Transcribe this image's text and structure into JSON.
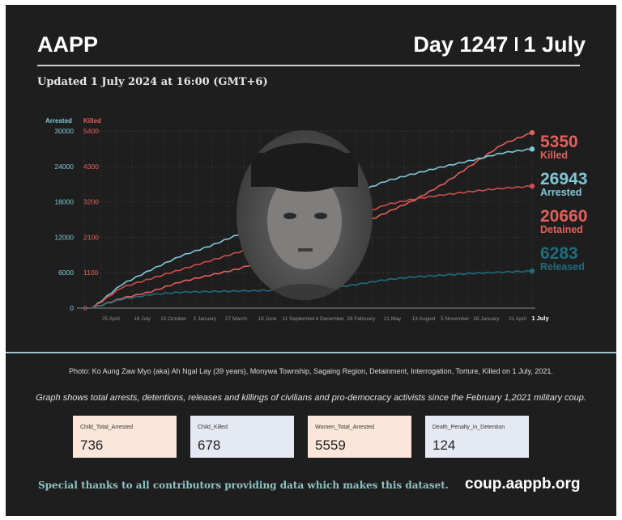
{
  "header": {
    "brand": "AAPP",
    "day": "Day 1247",
    "date": "1 July",
    "updated": "Updated 1 July 2024 at 16:00 (GMT+6)"
  },
  "chart_data": {
    "type": "line",
    "title": "",
    "left_axis": {
      "label": "Arrested",
      "ticks": [
        0,
        6000,
        12000,
        18000,
        24000,
        30000
      ],
      "range": [
        0,
        30000
      ],
      "color": "#7ec8d6"
    },
    "right_axis": {
      "label": "Killed",
      "ticks": [
        0,
        1100,
        2100,
        3200,
        4300,
        5400
      ],
      "range": [
        0,
        5400
      ],
      "color": "#e2605b"
    },
    "x_ticks": [
      "25 April",
      "16 July",
      "10 October",
      "2 January",
      "27 March",
      "19 June",
      "11 September",
      "4 December",
      "26 February",
      "21 May",
      "13 August",
      "5 November",
      "28 January",
      "21 April",
      "1 July"
    ],
    "grid": true,
    "series": [
      {
        "name": "Killed",
        "axis": "right",
        "color": "#e2605b",
        "final": 5350,
        "values": [
          0,
          300,
          500,
          800,
          1000,
          1200,
          1500,
          1750,
          2050,
          2500,
          2900,
          3300,
          3800,
          4400,
          5000,
          5350
        ]
      },
      {
        "name": "Arrested",
        "axis": "left",
        "color": "#7ec8d6",
        "final": 26943,
        "values": [
          0,
          4000,
          6500,
          8800,
          10500,
          12500,
          14500,
          15800,
          17500,
          19500,
          21500,
          22800,
          24000,
          25100,
          26300,
          26943
        ]
      },
      {
        "name": "Detained",
        "axis": "left",
        "color": "#cf4d4b",
        "final": 20660,
        "values": [
          0,
          3500,
          5000,
          6500,
          8000,
          9500,
          11200,
          12500,
          14000,
          15500,
          17500,
          18500,
          19200,
          19800,
          20300,
          20660
        ]
      },
      {
        "name": "Released",
        "axis": "left",
        "color": "#1f6d7c",
        "final": 6283,
        "values": [
          0,
          1500,
          2300,
          2700,
          2800,
          2900,
          3000,
          3100,
          3300,
          4000,
          4800,
          5300,
          5600,
          5900,
          6100,
          6283
        ]
      }
    ]
  },
  "caption": "Photo: Ko Aung Zaw Myo (aka) Ah Ngal Lay (39 years), Monywa Township, Sagaing Region, Detainment, Interrogation, Torture, Killed on 1 July, 2021.",
  "description": "Graph shows total arrests, detentions, releases and killings of civilians and pro-democracy activists since the February 1,2021 military coup.",
  "stats": [
    {
      "label": "Child_Total_Arrested",
      "value": "736",
      "bg": "#fbe6d9"
    },
    {
      "label": "Child_Killed",
      "value": "678",
      "bg": "#e5e9f1"
    },
    {
      "label": "Women_Total_Arrested",
      "value": "5559",
      "bg": "#fbe6d9"
    },
    {
      "label": "Death_Penalty_in_Detention",
      "value": "124",
      "bg": "#e5e9f1"
    }
  ],
  "footer": {
    "thanks": "Special thanks to all contributors providing data which makes this dataset.",
    "site": "coup.aappb.org"
  }
}
